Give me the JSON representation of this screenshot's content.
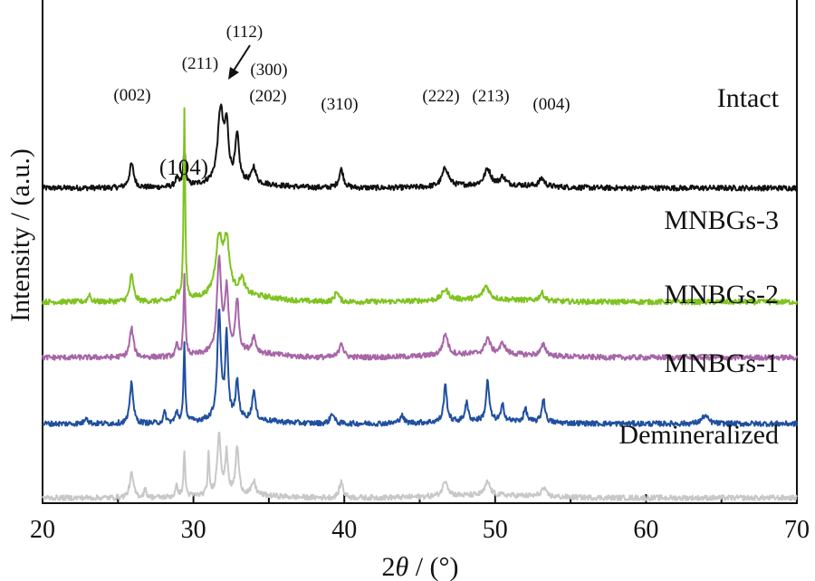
{
  "chart_data": {
    "type": "line",
    "xlabel_prefix": "2",
    "xlabel_var": "θ",
    "xlabel_suffix": " / (°)",
    "ylabel": "Intensity / (a.u.)",
    "xlim": [
      20,
      70
    ],
    "xticks": [
      "20",
      "30",
      "40",
      "50",
      "60",
      "70"
    ],
    "grid": false,
    "series": [
      {
        "name": "Intact",
        "color": "#111111",
        "baseline": 5.95,
        "noise": 0.05,
        "broad": [
          [
            29.5,
            36.0,
            0.1
          ],
          [
            46.0,
            54.0,
            0.06
          ]
        ],
        "peaks": [
          [
            25.9,
            0.45,
            0.35
          ],
          [
            28.9,
            0.15,
            0.25
          ],
          [
            29.4,
            0.65,
            0.18
          ],
          [
            31.8,
            1.35,
            0.45
          ],
          [
            32.2,
            0.95,
            0.3
          ],
          [
            32.9,
            0.85,
            0.3
          ],
          [
            34.0,
            0.3,
            0.3
          ],
          [
            39.8,
            0.35,
            0.35
          ],
          [
            46.7,
            0.35,
            0.5
          ],
          [
            49.5,
            0.3,
            0.5
          ],
          [
            50.5,
            0.15,
            0.4
          ],
          [
            53.1,
            0.15,
            0.4
          ]
        ]
      },
      {
        "name": "MNBGs-3",
        "color": "#7fc31f",
        "baseline": 3.8,
        "noise": 0.05,
        "broad": [
          [
            30.0,
            36.0,
            0.12
          ],
          [
            45.0,
            53.0,
            0.05
          ]
        ],
        "peaks": [
          [
            23.1,
            0.15,
            0.2
          ],
          [
            25.9,
            0.5,
            0.3
          ],
          [
            28.9,
            0.15,
            0.2
          ],
          [
            29.4,
            3.6,
            0.12
          ],
          [
            31.7,
            1.05,
            0.55
          ],
          [
            32.2,
            0.95,
            0.45
          ],
          [
            33.2,
            0.3,
            0.4
          ],
          [
            39.5,
            0.2,
            0.3
          ],
          [
            46.7,
            0.2,
            0.5
          ],
          [
            49.4,
            0.25,
            0.5
          ],
          [
            53.1,
            0.15,
            0.4
          ]
        ]
      },
      {
        "name": "MNBGs-2",
        "color": "#a766a8",
        "baseline": 2.75,
        "noise": 0.05,
        "broad": [
          [
            30.0,
            36.0,
            0.1
          ],
          [
            45.0,
            54.0,
            0.07
          ]
        ],
        "peaks": [
          [
            25.9,
            0.55,
            0.3
          ],
          [
            28.9,
            0.2,
            0.2
          ],
          [
            29.4,
            1.5,
            0.14
          ],
          [
            31.7,
            1.75,
            0.32
          ],
          [
            32.2,
            1.15,
            0.28
          ],
          [
            32.9,
            1.0,
            0.25
          ],
          [
            34.0,
            0.3,
            0.3
          ],
          [
            39.8,
            0.3,
            0.3
          ],
          [
            46.7,
            0.4,
            0.4
          ],
          [
            49.5,
            0.3,
            0.4
          ],
          [
            50.5,
            0.2,
            0.4
          ],
          [
            53.2,
            0.2,
            0.4
          ]
        ]
      },
      {
        "name": "MNBGs-1",
        "color": "#1f4fa0",
        "baseline": 1.5,
        "noise": 0.05,
        "broad": [
          [
            29.5,
            36.0,
            0.08
          ],
          [
            45.0,
            54.0,
            0.05
          ]
        ],
        "peaks": [
          [
            22.9,
            0.15,
            0.2
          ],
          [
            25.9,
            0.8,
            0.25
          ],
          [
            28.1,
            0.2,
            0.2
          ],
          [
            28.9,
            0.2,
            0.2
          ],
          [
            29.4,
            1.45,
            0.13
          ],
          [
            31.7,
            2.0,
            0.28
          ],
          [
            32.2,
            1.55,
            0.22
          ],
          [
            32.9,
            0.7,
            0.25
          ],
          [
            34.0,
            0.55,
            0.25
          ],
          [
            39.2,
            0.2,
            0.3
          ],
          [
            43.8,
            0.15,
            0.3
          ],
          [
            46.7,
            0.7,
            0.25
          ],
          [
            48.1,
            0.35,
            0.25
          ],
          [
            49.5,
            0.75,
            0.25
          ],
          [
            50.5,
            0.3,
            0.25
          ],
          [
            52.0,
            0.25,
            0.25
          ],
          [
            53.2,
            0.45,
            0.25
          ],
          [
            63.9,
            0.15,
            0.5
          ]
        ]
      },
      {
        "name": "Demineralized",
        "color": "#c8c8c8",
        "baseline": 0.1,
        "noise": 0.05,
        "broad": [
          [
            29.5,
            36.0,
            0.06
          ],
          [
            45.0,
            54.0,
            0.05
          ]
        ],
        "peaks": [
          [
            25.9,
            0.45,
            0.3
          ],
          [
            26.8,
            0.15,
            0.2
          ],
          [
            28.9,
            0.2,
            0.2
          ],
          [
            29.4,
            0.85,
            0.13
          ],
          [
            31.0,
            0.75,
            0.13
          ],
          [
            31.7,
            1.15,
            0.28
          ],
          [
            32.2,
            0.75,
            0.22
          ],
          [
            32.9,
            0.9,
            0.25
          ],
          [
            34.0,
            0.25,
            0.3
          ],
          [
            39.8,
            0.3,
            0.3
          ],
          [
            46.7,
            0.3,
            0.4
          ],
          [
            49.5,
            0.25,
            0.4
          ],
          [
            53.2,
            0.15,
            0.4
          ]
        ]
      }
    ],
    "annotations": [
      {
        "text": "(002)",
        "x": 25.9
      },
      {
        "text": "(211)",
        "x": 30.8
      },
      {
        "text": "(112)",
        "x": 33.1
      },
      {
        "text": "(300)",
        "x": 34.0
      },
      {
        "text": "(202)",
        "x": 34.6
      },
      {
        "text": "(310)",
        "x": 39.8
      },
      {
        "text": "(222)",
        "x": 46.7
      },
      {
        "text": "(213)",
        "x": 49.8
      },
      {
        "text": "(004)",
        "x": 53.7
      },
      {
        "text": "(104)",
        "x": 29.7
      }
    ]
  }
}
